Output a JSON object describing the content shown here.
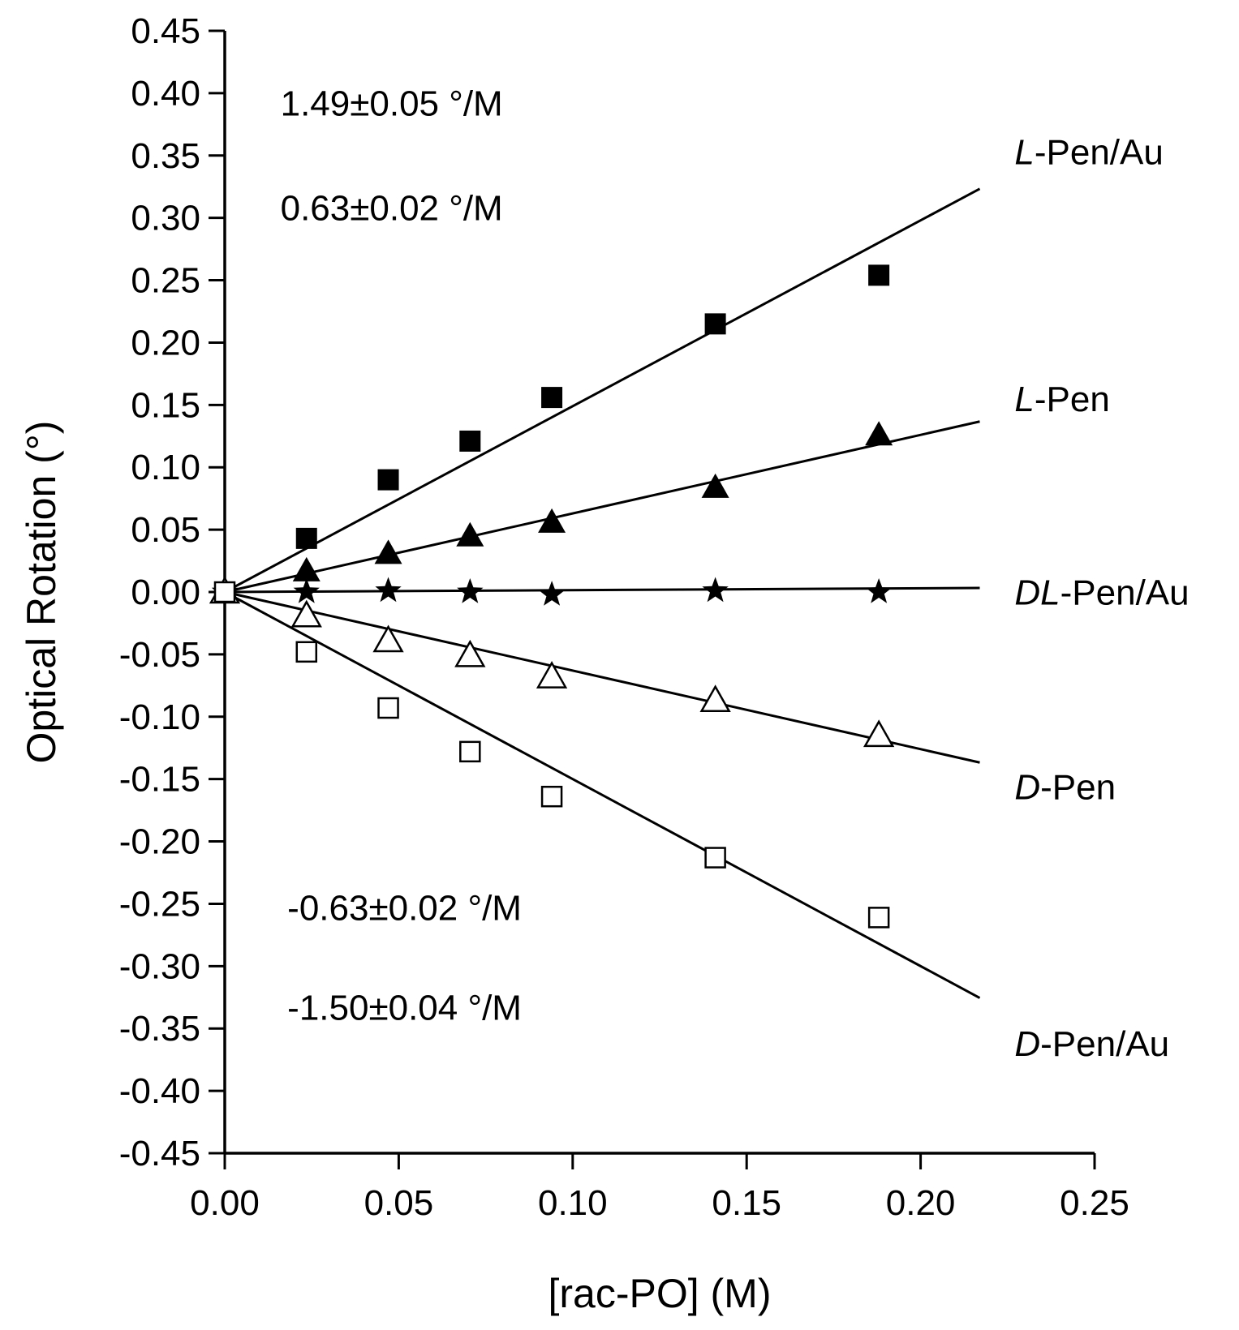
{
  "chart_data": {
    "type": "scatter",
    "title": "",
    "xlabel": "[rac-PO] (M)",
    "ylabel": "Optical Rotation (°)",
    "xlim": [
      0,
      0.25
    ],
    "ylim": [
      -0.45,
      0.45
    ],
    "grid": false,
    "x_ticks": [
      "0.00",
      "0.05",
      "0.10",
      "0.15",
      "0.20",
      "0.25"
    ],
    "y_ticks": [
      "0.45",
      "0.40",
      "0.35",
      "0.30",
      "0.25",
      "0.20",
      "0.15",
      "0.10",
      "0.05",
      "0.00",
      "-0.05",
      "-0.10",
      "-0.15",
      "-0.20",
      "-0.25",
      "-0.30",
      "-0.35",
      "-0.40",
      "-0.45"
    ],
    "x": [
      0.0,
      0.0235,
      0.047,
      0.0705,
      0.094,
      0.141,
      0.188
    ],
    "series": [
      {
        "name": "L-Pen/Au",
        "label_prefix": "L",
        "label_suffix": "-Pen/Au",
        "marker": "filled-square",
        "values": [
          0.0,
          0.043,
          0.09,
          0.121,
          0.156,
          0.215,
          0.254
        ],
        "fit_slope": 1.49
      },
      {
        "name": "L-Pen",
        "label_prefix": "L",
        "label_suffix": "-Pen",
        "marker": "filled-triangle",
        "values": [
          0.0,
          0.017,
          0.031,
          0.045,
          0.056,
          0.084,
          0.126
        ],
        "fit_slope": 0.63
      },
      {
        "name": "DL-Pen/Au",
        "label_prefix": "DL",
        "label_suffix": "-Pen/Au",
        "marker": "filled-star",
        "values": [
          0.0,
          0.0,
          0.001,
          0.0,
          -0.002,
          0.001,
          0.0
        ],
        "fit_slope": 0.015
      },
      {
        "name": "D-Pen",
        "label_prefix": "D",
        "label_suffix": "-Pen",
        "marker": "open-triangle",
        "values": [
          0.0,
          -0.019,
          -0.039,
          -0.051,
          -0.068,
          -0.087,
          -0.115
        ],
        "fit_slope": -0.63
      },
      {
        "name": "D-Pen/Au",
        "label_prefix": "D",
        "label_suffix": "-Pen/Au",
        "marker": "open-square",
        "values": [
          0.0,
          -0.048,
          -0.093,
          -0.128,
          -0.164,
          -0.213,
          -0.261
        ],
        "fit_slope": -1.5
      }
    ],
    "fit_x_range": [
      0.0,
      0.217
    ],
    "annotations": [
      {
        "text": "1.49±0.05 °/M",
        "x": 0.016,
        "y": 0.382
      },
      {
        "text": "0.63±0.02 °/M",
        "x": 0.016,
        "y": 0.298
      },
      {
        "text": "-0.63±0.02 °/M",
        "x": 0.018,
        "y": -0.263
      },
      {
        "text": "-1.50±0.04 °/M",
        "x": 0.018,
        "y": -0.343
      }
    ],
    "series_label_positions": [
      {
        "x": 0.227,
        "y": 0.343
      },
      {
        "x": 0.227,
        "y": 0.145
      },
      {
        "x": 0.227,
        "y": -0.01
      },
      {
        "x": 0.227,
        "y": -0.166
      },
      {
        "x": 0.227,
        "y": -0.372
      }
    ]
  }
}
